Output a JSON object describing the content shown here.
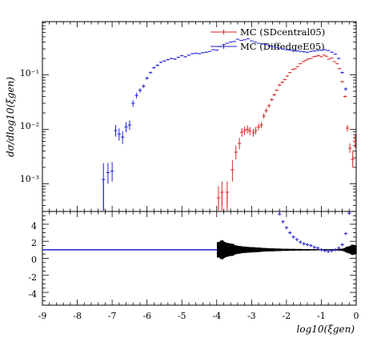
{
  "chart_data": [
    {
      "type": "scatter",
      "panel": "upper",
      "ylabel": "dσ/dlog10(ξgen)",
      "yscale": "log",
      "xlim": [
        -9,
        0
      ],
      "ylim": [
        0.00031,
        0.95
      ],
      "ytick_labels": [
        "10⁻³",
        "10⁻²",
        "10⁻¹"
      ],
      "ytick_values": [
        0.001,
        0.01,
        0.1
      ],
      "legend": {
        "placement": "top-right"
      },
      "series": [
        {
          "name": "MC (SDcentral05)",
          "color": "#d62728",
          "x": [
            -3.95,
            -3.85,
            -3.7,
            -3.55,
            -3.45,
            -3.35,
            -3.28,
            -3.2,
            -3.12,
            -3.05,
            -2.95,
            -2.88,
            -2.8,
            -2.72,
            -2.65,
            -2.58,
            -2.5,
            -2.42,
            -2.35,
            -2.28,
            -2.2,
            -2.12,
            -2.05,
            -1.98,
            -1.9,
            -1.82,
            -1.75,
            -1.68,
            -1.6,
            -1.52,
            -1.45,
            -1.38,
            -1.3,
            -1.22,
            -1.15,
            -1.08,
            -1.0,
            -0.92,
            -0.85,
            -0.78,
            -0.7,
            -0.62,
            -0.55,
            -0.48,
            -0.4,
            -0.32,
            -0.25,
            -0.18,
            -0.1,
            -0.03
          ],
          "y": [
            0.00055,
            0.0007,
            0.0007,
            0.0018,
            0.0038,
            0.0055,
            0.0088,
            0.0095,
            0.01,
            0.0093,
            0.0086,
            0.0095,
            0.011,
            0.012,
            0.0175,
            0.022,
            0.027,
            0.035,
            0.043,
            0.052,
            0.065,
            0.073,
            0.082,
            0.095,
            0.11,
            0.125,
            0.13,
            0.142,
            0.16,
            0.175,
            0.185,
            0.195,
            0.2,
            0.215,
            0.22,
            0.225,
            0.215,
            0.23,
            0.22,
            0.195,
            0.205,
            0.175,
            0.16,
            0.13,
            0.075,
            0.04,
            0.0105,
            0.0045,
            0.0028,
            0.006
          ],
          "yerr_lo": [
            0.00024,
            0.0003,
            0.0003,
            0.0007,
            0.001,
            0.0012,
            0.0015,
            0.0016,
            0.0016,
            0.0015,
            0.0013,
            0.0014,
            0.0014,
            0.0014,
            0.0018,
            0.002,
            0.002,
            0.002,
            0.002,
            0.002,
            0.003,
            0.003,
            0.003,
            0.003,
            0.003,
            0.003,
            0.003,
            0.003,
            0.003,
            0.003,
            0.003,
            0.003,
            0.003,
            0.003,
            0.003,
            0.003,
            0.003,
            0.003,
            0.003,
            0.003,
            0.003,
            0.003,
            0.003,
            0.003,
            0.003,
            0.002,
            0.0015,
            0.0008,
            0.0008,
            0.0015
          ],
          "yerr_hi": [
            0.00035,
            0.0004,
            0.0004,
            0.0009,
            0.0012,
            0.0015,
            0.0017,
            0.0018,
            0.0018,
            0.0017,
            0.0015,
            0.0016,
            0.0016,
            0.0016,
            0.002,
            0.0022,
            0.0022,
            0.0022,
            0.0022,
            0.0022,
            0.003,
            0.003,
            0.003,
            0.003,
            0.003,
            0.003,
            0.003,
            0.003,
            0.003,
            0.003,
            0.003,
            0.003,
            0.003,
            0.003,
            0.003,
            0.003,
            0.003,
            0.003,
            0.003,
            0.003,
            0.003,
            0.003,
            0.003,
            0.003,
            0.003,
            0.002,
            0.0015,
            0.001,
            0.0012,
            0.002
          ]
        },
        {
          "name": "MC (DiffedgeE05)",
          "color": "#1f1fd6",
          "x": [
            -7.25,
            -7.12,
            -7.0,
            -6.9,
            -6.8,
            -6.7,
            -6.6,
            -6.5,
            -6.4,
            -6.3,
            -6.2,
            -6.1,
            -6.0,
            -5.9,
            -5.8,
            -5.7,
            -5.6,
            -5.5,
            -5.4,
            -5.3,
            -5.2,
            -5.1,
            -5.0,
            -4.9,
            -4.8,
            -4.7,
            -4.6,
            -4.5,
            -4.4,
            -4.3,
            -4.2,
            -4.1,
            -4.0,
            -3.9,
            -3.8,
            -3.7,
            -3.6,
            -3.5,
            -3.4,
            -3.3,
            -3.2,
            -3.1,
            -3.0,
            -2.9,
            -2.8,
            -2.7,
            -2.6,
            -2.5,
            -2.4,
            -2.3,
            -2.2,
            -2.1,
            -2.0,
            -1.9,
            -1.8,
            -1.7,
            -1.6,
            -1.5,
            -1.4,
            -1.3,
            -1.2,
            -1.1,
            -1.0,
            -0.9,
            -0.8,
            -0.7,
            -0.6,
            -0.5,
            -0.4,
            -0.3
          ],
          "y": [
            0.0012,
            0.0016,
            0.0017,
            0.0095,
            0.0082,
            0.0072,
            0.011,
            0.012,
            0.03,
            0.042,
            0.052,
            0.062,
            0.087,
            0.11,
            0.135,
            0.15,
            0.17,
            0.18,
            0.19,
            0.2,
            0.195,
            0.21,
            0.225,
            0.215,
            0.23,
            0.245,
            0.25,
            0.245,
            0.255,
            0.26,
            0.27,
            0.29,
            0.285,
            0.33,
            0.36,
            0.38,
            0.4,
            0.41,
            0.45,
            0.43,
            0.44,
            0.46,
            0.42,
            0.4,
            0.38,
            0.37,
            0.36,
            0.34,
            0.33,
            0.32,
            0.31,
            0.3,
            0.29,
            0.285,
            0.28,
            0.275,
            0.27,
            0.265,
            0.26,
            0.27,
            0.275,
            0.28,
            0.285,
            0.29,
            0.28,
            0.26,
            0.24,
            0.2,
            0.11,
            0.055
          ],
          "yerr_lo": [
            0.0009,
            0.0006,
            0.0006,
            0.0022,
            0.002,
            0.0018,
            0.0022,
            0.0022,
            0.004,
            0.005,
            0.005,
            0.005,
            0.006,
            0.006,
            0.006,
            0.006,
            0.006,
            0.006,
            0.006,
            0.006,
            0.006,
            0.006,
            0.006,
            0.006,
            0.006,
            0.006,
            0.006,
            0.006,
            0.006,
            0.006,
            0.006,
            0.006,
            0.006,
            0.006,
            0.006,
            0.006,
            0.006,
            0.006,
            0.006,
            0.006,
            0.006,
            0.006,
            0.006,
            0.006,
            0.006,
            0.006,
            0.006,
            0.006,
            0.006,
            0.006,
            0.006,
            0.006,
            0.006,
            0.006,
            0.006,
            0.006,
            0.006,
            0.006,
            0.006,
            0.006,
            0.006,
            0.006,
            0.006,
            0.006,
            0.006,
            0.006,
            0.006,
            0.006,
            0.005,
            0.004
          ],
          "yerr_hi": [
            0.0012,
            0.0008,
            0.0008,
            0.0025,
            0.0022,
            0.002,
            0.0025,
            0.0025,
            0.004,
            0.005,
            0.005,
            0.005,
            0.006,
            0.006,
            0.006,
            0.006,
            0.006,
            0.006,
            0.006,
            0.006,
            0.006,
            0.006,
            0.006,
            0.006,
            0.006,
            0.006,
            0.006,
            0.006,
            0.006,
            0.006,
            0.006,
            0.006,
            0.006,
            0.006,
            0.006,
            0.006,
            0.006,
            0.006,
            0.006,
            0.006,
            0.006,
            0.006,
            0.006,
            0.006,
            0.006,
            0.006,
            0.006,
            0.006,
            0.006,
            0.006,
            0.006,
            0.006,
            0.006,
            0.006,
            0.006,
            0.006,
            0.006,
            0.006,
            0.006,
            0.006,
            0.006,
            0.006,
            0.006,
            0.006,
            0.006,
            0.006,
            0.006,
            0.006,
            0.005,
            0.004
          ]
        }
      ]
    },
    {
      "type": "scatter",
      "panel": "lower",
      "xlabel": "log10(ξgen)",
      "xlim": [
        -9,
        0
      ],
      "ylim": [
        -5.5,
        5.5
      ],
      "xtick_labels": [
        "-9",
        "-8",
        "-7",
        "-6",
        "-5",
        "-4",
        "-3",
        "-2",
        "-1",
        "0"
      ],
      "xtick_values": [
        -9,
        -8,
        -7,
        -6,
        -5,
        -4,
        -3,
        -2,
        -1,
        0
      ],
      "ytick_labels": [
        "-4",
        "-2",
        "0",
        "2",
        "4"
      ],
      "ytick_values": [
        -4,
        -2,
        0,
        2,
        4
      ],
      "reference_line": {
        "y": 1,
        "x_range": [
          -9,
          -3.95
        ],
        "color": "#1f1fd6"
      },
      "uncertainty_band": {
        "color": "#000000",
        "x": [
          -3.95,
          -3.85,
          -3.7,
          -3.55,
          -3.45,
          -3.35,
          -3.25,
          -3.15,
          -3.05,
          -2.95,
          -2.8,
          -2.6,
          -2.4,
          -2.2,
          -2.0,
          -1.8,
          -1.6,
          -1.4,
          -1.2,
          -1.0,
          -0.8,
          -0.6,
          -0.4,
          -0.25,
          -0.1,
          -0.03
        ],
        "halfwidth": [
          0.9,
          1.1,
          0.8,
          0.7,
          0.5,
          0.45,
          0.38,
          0.35,
          0.32,
          0.3,
          0.26,
          0.2,
          0.17,
          0.14,
          0.12,
          0.1,
          0.09,
          0.08,
          0.07,
          0.06,
          0.06,
          0.07,
          0.12,
          0.35,
          0.6,
          0.5
        ]
      },
      "series": [
        {
          "name": "",
          "color": "#1f1fd6",
          "x": [
            -2.2,
            -2.1,
            -2.0,
            -1.9,
            -1.8,
            -1.7,
            -1.6,
            -1.5,
            -1.4,
            -1.3,
            -1.2,
            -1.1,
            -1.0,
            -0.9,
            -0.8,
            -0.7,
            -0.6,
            -0.5,
            -0.4,
            -0.3,
            -0.2
          ],
          "y": [
            5.2,
            4.3,
            3.6,
            3.0,
            2.5,
            2.2,
            1.9,
            1.7,
            1.6,
            1.5,
            1.3,
            1.2,
            1.0,
            0.9,
            0.8,
            0.9,
            1.0,
            1.2,
            1.6,
            2.9,
            5.3
          ]
        }
      ]
    }
  ]
}
